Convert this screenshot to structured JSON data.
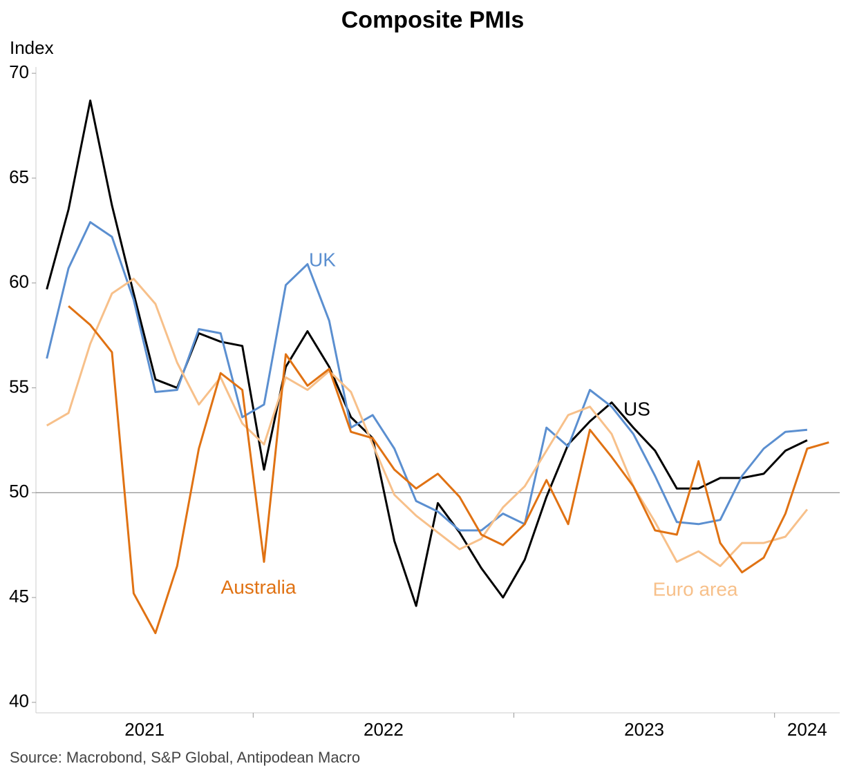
{
  "chart_data": {
    "type": "line",
    "title": "Composite PMIs",
    "y_label": "Index",
    "source": "Source: Macrobond, S&P Global, Antipodean Macro",
    "x": [
      "2021-03",
      "2021-04",
      "2021-05",
      "2021-06",
      "2021-07",
      "2021-08",
      "2021-09",
      "2021-10",
      "2021-11",
      "2021-12",
      "2022-01",
      "2022-02",
      "2022-03",
      "2022-04",
      "2022-05",
      "2022-06",
      "2022-07",
      "2022-08",
      "2022-09",
      "2022-10",
      "2022-11",
      "2022-12",
      "2023-01",
      "2023-02",
      "2023-03",
      "2023-04",
      "2023-05",
      "2023-06",
      "2023-07",
      "2023-08",
      "2023-09",
      "2023-10",
      "2023-11",
      "2023-12",
      "2024-01",
      "2024-02",
      "2024-03"
    ],
    "xlim": [
      "2021-03",
      "2024-04"
    ],
    "xticks": [
      "2022-01",
      "2023-01",
      "2024-01"
    ],
    "year_labels": [
      "2021",
      "2022",
      "2023",
      "2024"
    ],
    "ylim": [
      39.5,
      70.3
    ],
    "yticks": [
      40,
      45,
      50,
      55,
      60,
      65,
      70
    ],
    "reference_line": 50,
    "grid": false,
    "series": [
      {
        "name": "US",
        "color": "#000000",
        "values": [
          59.7,
          63.5,
          68.7,
          63.7,
          59.5,
          55.4,
          55.0,
          57.6,
          57.2,
          57.0,
          51.1,
          56.0,
          57.7,
          56.0,
          53.6,
          52.6,
          47.7,
          44.6,
          49.5,
          48.1,
          46.4,
          45.0,
          46.8,
          49.8,
          52.3,
          53.4,
          54.3,
          53.1,
          52.0,
          50.2,
          50.2,
          50.7,
          50.7,
          50.9,
          52.0,
          52.5,
          null
        ]
      },
      {
        "name": "UK",
        "color": "#5b8fd0",
        "values": [
          56.4,
          60.7,
          62.9,
          62.2,
          59.2,
          54.8,
          54.9,
          57.8,
          57.6,
          53.6,
          54.2,
          59.9,
          60.9,
          58.2,
          53.1,
          53.7,
          52.1,
          49.6,
          49.1,
          48.2,
          48.2,
          49.0,
          48.5,
          53.1,
          52.2,
          54.9,
          54.1,
          52.8,
          50.8,
          48.6,
          48.5,
          48.7,
          50.8,
          52.1,
          52.9,
          53.0,
          null
        ]
      },
      {
        "name": "Euro area",
        "color": "#f7c08a",
        "values": [
          53.2,
          53.8,
          57.1,
          59.5,
          60.2,
          59.0,
          56.2,
          54.2,
          55.5,
          53.3,
          52.3,
          55.5,
          54.9,
          55.8,
          54.8,
          52.3,
          49.9,
          48.9,
          48.1,
          47.3,
          47.8,
          49.3,
          50.3,
          52.0,
          53.7,
          54.1,
          52.8,
          50.3,
          48.6,
          46.7,
          47.2,
          46.5,
          47.6,
          47.6,
          47.9,
          49.2,
          null
        ]
      },
      {
        "name": "Australia",
        "color": "#e07213",
        "values": [
          null,
          58.9,
          58.0,
          56.7,
          45.2,
          43.3,
          46.5,
          52.1,
          55.7,
          54.9,
          46.7,
          56.6,
          55.1,
          55.9,
          52.9,
          52.6,
          51.1,
          50.2,
          50.9,
          49.8,
          48.0,
          47.5,
          48.5,
          50.6,
          48.5,
          53.0,
          51.7,
          50.3,
          48.2,
          48.0,
          51.5,
          47.6,
          46.2,
          46.9,
          49.0,
          52.1,
          52.4
        ]
      }
    ]
  }
}
